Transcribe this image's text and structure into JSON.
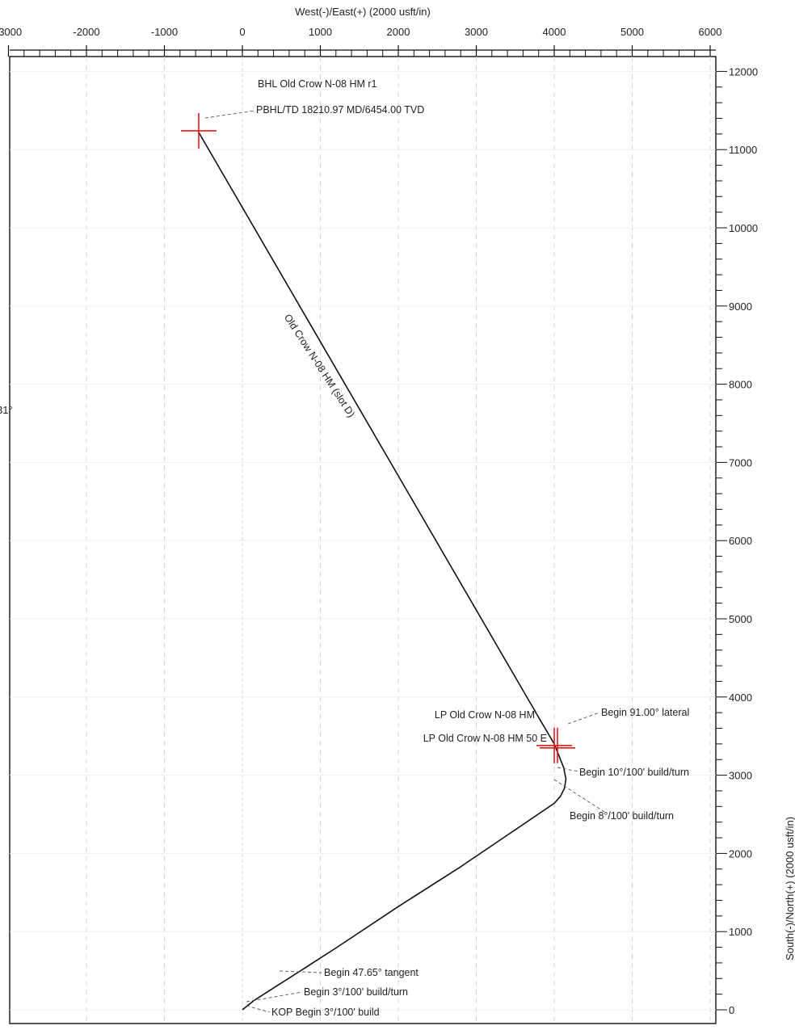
{
  "chart_data": {
    "type": "line",
    "title": "",
    "xlabel": "West(-)/East(+) (2000 usft/in)",
    "ylabel": "South(-)/North(+) (2000 usft/in)",
    "xlim": [
      -3000,
      6000
    ],
    "ylim": [
      -200,
      12300
    ],
    "x_ticks": [
      "-3000",
      "-2000",
      "-1000",
      "0",
      "1000",
      "2000",
      "3000",
      "4000",
      "5000",
      "6000"
    ],
    "y_ticks": [
      "0",
      "1000",
      "2000",
      "3000",
      "4000",
      "5000",
      "6000",
      "7000",
      "8000",
      "9000",
      "10000",
      "11000",
      "12000"
    ],
    "left_edge_label": "31°",
    "series": [
      {
        "name": "Old Crow N-08 HM (slot D)",
        "color": "#111111",
        "points": [
          [
            0,
            0
          ],
          [
            150,
            120
          ],
          [
            400,
            280
          ],
          [
            700,
            470
          ],
          [
            1200,
            790
          ],
          [
            2000,
            1320
          ],
          [
            2800,
            1830
          ],
          [
            3600,
            2370
          ],
          [
            4000,
            2640
          ],
          [
            4080,
            2730
          ],
          [
            4130,
            2830
          ],
          [
            4150,
            2950
          ],
          [
            4120,
            3100
          ],
          [
            4060,
            3250
          ],
          [
            4000,
            3400
          ],
          [
            3800,
            3740
          ],
          [
            -560,
            11220
          ]
        ]
      }
    ],
    "markers": [
      {
        "label": "PBHL target",
        "x": -560,
        "y": 11240,
        "color": "#e0191f"
      },
      {
        "label": "LP target",
        "x": 4000,
        "y": 3380,
        "color": "#e0191f"
      }
    ],
    "annotations": [
      {
        "text": "BHL Old Crow N-08 HM r1"
      },
      {
        "text": "PBHL/TD 18210.97 MD/6454.00 TVD"
      },
      {
        "text": "LP Old Crow N-08 HM"
      },
      {
        "text": "LP Old Crow N-08 HM 50 E"
      },
      {
        "text": "Begin 91.00° lateral"
      },
      {
        "text": "Begin 10°/100' build/turn"
      },
      {
        "text": "Begin 8°/100' build/turn"
      },
      {
        "text": "Begin 47.65° tangent"
      },
      {
        "text": "Begin 3°/100' build/turn"
      },
      {
        "text": "KOP Begin 3°/100' build"
      }
    ]
  }
}
